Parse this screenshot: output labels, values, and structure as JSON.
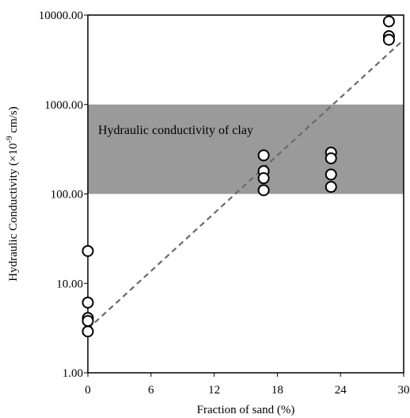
{
  "chart_data": {
    "type": "scatter",
    "xlabel": "Fraction of sand (%)",
    "ylabel_prefix": "Hydraulic Conductivity (×10",
    "ylabel_exp": "-9",
    "ylabel_suffix": " cm/s)",
    "xlim": [
      0,
      30
    ],
    "ylim": [
      1,
      10000
    ],
    "yscale": "log",
    "x_ticks": [
      0,
      6,
      12,
      18,
      24,
      30
    ],
    "x_tick_labels": [
      "0",
      "6",
      "12",
      "18",
      "24",
      "30"
    ],
    "y_ticks": [
      1,
      10,
      100,
      1000,
      10000
    ],
    "y_tick_labels": [
      "1.00",
      "10.00",
      "100.00",
      "1000.00",
      "10000.00"
    ],
    "grid": false,
    "band": {
      "label": "Hydraulic conductivity of clay",
      "y_from": 100,
      "y_to": 1000,
      "color": "#9a9a9a"
    },
    "trendline": {
      "style": "dashed",
      "x": [
        0,
        30
      ],
      "y": [
        3.1,
        5300
      ],
      "color": "#6a6a6a"
    },
    "series": [
      {
        "marker": "open-circle",
        "points": [
          [
            0,
            23
          ],
          [
            0,
            6.1
          ],
          [
            0,
            4.1
          ],
          [
            0,
            3.8
          ],
          [
            0,
            2.9
          ],
          [
            16.7,
            270
          ],
          [
            16.7,
            180
          ],
          [
            16.7,
            150
          ],
          [
            16.7,
            110
          ],
          [
            23.1,
            290
          ],
          [
            23.1,
            250
          ],
          [
            23.1,
            165
          ],
          [
            23.1,
            120
          ],
          [
            28.6,
            8500
          ],
          [
            28.6,
            5800
          ],
          [
            28.6,
            5300
          ]
        ]
      }
    ]
  }
}
